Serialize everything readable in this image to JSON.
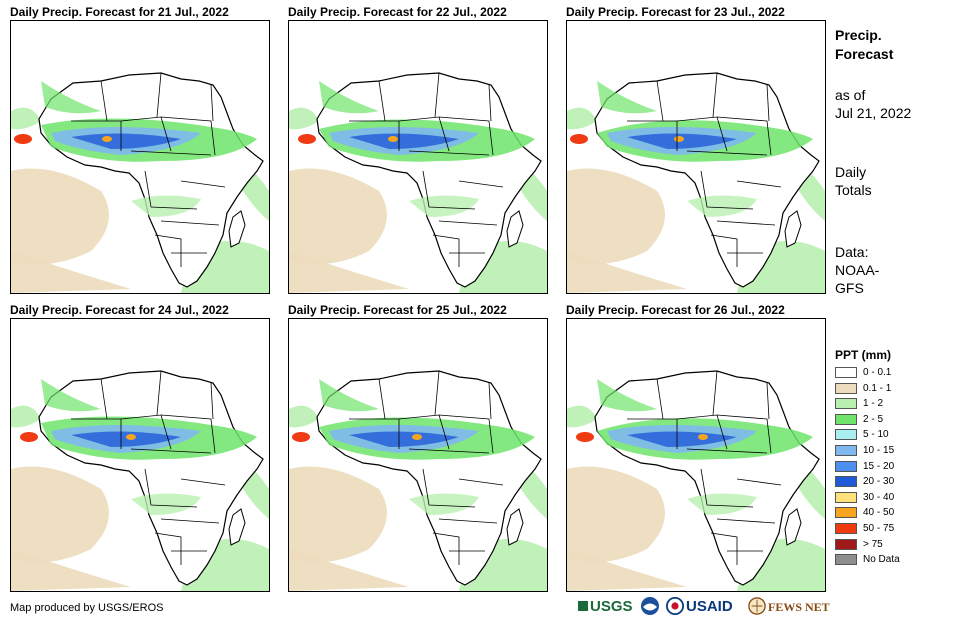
{
  "panels": [
    {
      "title": "Daily Precip. Forecast for 21 Jul., 2022"
    },
    {
      "title": "Daily Precip. Forecast for 22 Jul., 2022"
    },
    {
      "title": "Daily Precip. Forecast for 23 Jul., 2022"
    },
    {
      "title": "Daily Precip. Forecast for 24 Jul., 2022"
    },
    {
      "title": "Daily Precip. Forecast for 25 Jul., 2022"
    },
    {
      "title": "Daily Precip. Forecast for 26 Jul., 2022"
    }
  ],
  "sidebar": {
    "title_line1": "Precip.",
    "title_line2": "Forecast",
    "asof_line1": "as of",
    "asof_line2": "Jul 21, 2022",
    "totals_line1": "Daily",
    "totals_line2": "Totals",
    "data_line1": "Data:",
    "data_line2": "NOAA-",
    "data_line3": "GFS"
  },
  "legend": {
    "title": "PPT (mm)",
    "items": [
      {
        "label": "0 - 0.1",
        "color": "#ffffff"
      },
      {
        "label": "0.1 - 1",
        "color": "#ecdcbd"
      },
      {
        "label": "1 - 2",
        "color": "#b9f0b0"
      },
      {
        "label": "2 - 5",
        "color": "#6fe46b"
      },
      {
        "label": "5 - 10",
        "color": "#a9eef0"
      },
      {
        "label": "10 - 15",
        "color": "#7fb8ee"
      },
      {
        "label": "15 - 20",
        "color": "#4b8ff0"
      },
      {
        "label": "20 - 30",
        "color": "#1f5ad8"
      },
      {
        "label": "30 - 40",
        "color": "#ffe27a"
      },
      {
        "label": "40 - 50",
        "color": "#f5a51e"
      },
      {
        "label": "50 - 75",
        "color": "#f03a12"
      },
      {
        "label": "> 75",
        "color": "#a01818"
      },
      {
        "label": "No Data",
        "color": "#8e8e8e"
      }
    ]
  },
  "credit": "Map produced by USGS/EROS",
  "logos": {
    "usgs": "USGS",
    "usaid": "USAID",
    "fewsnet": "FEWS NET"
  }
}
